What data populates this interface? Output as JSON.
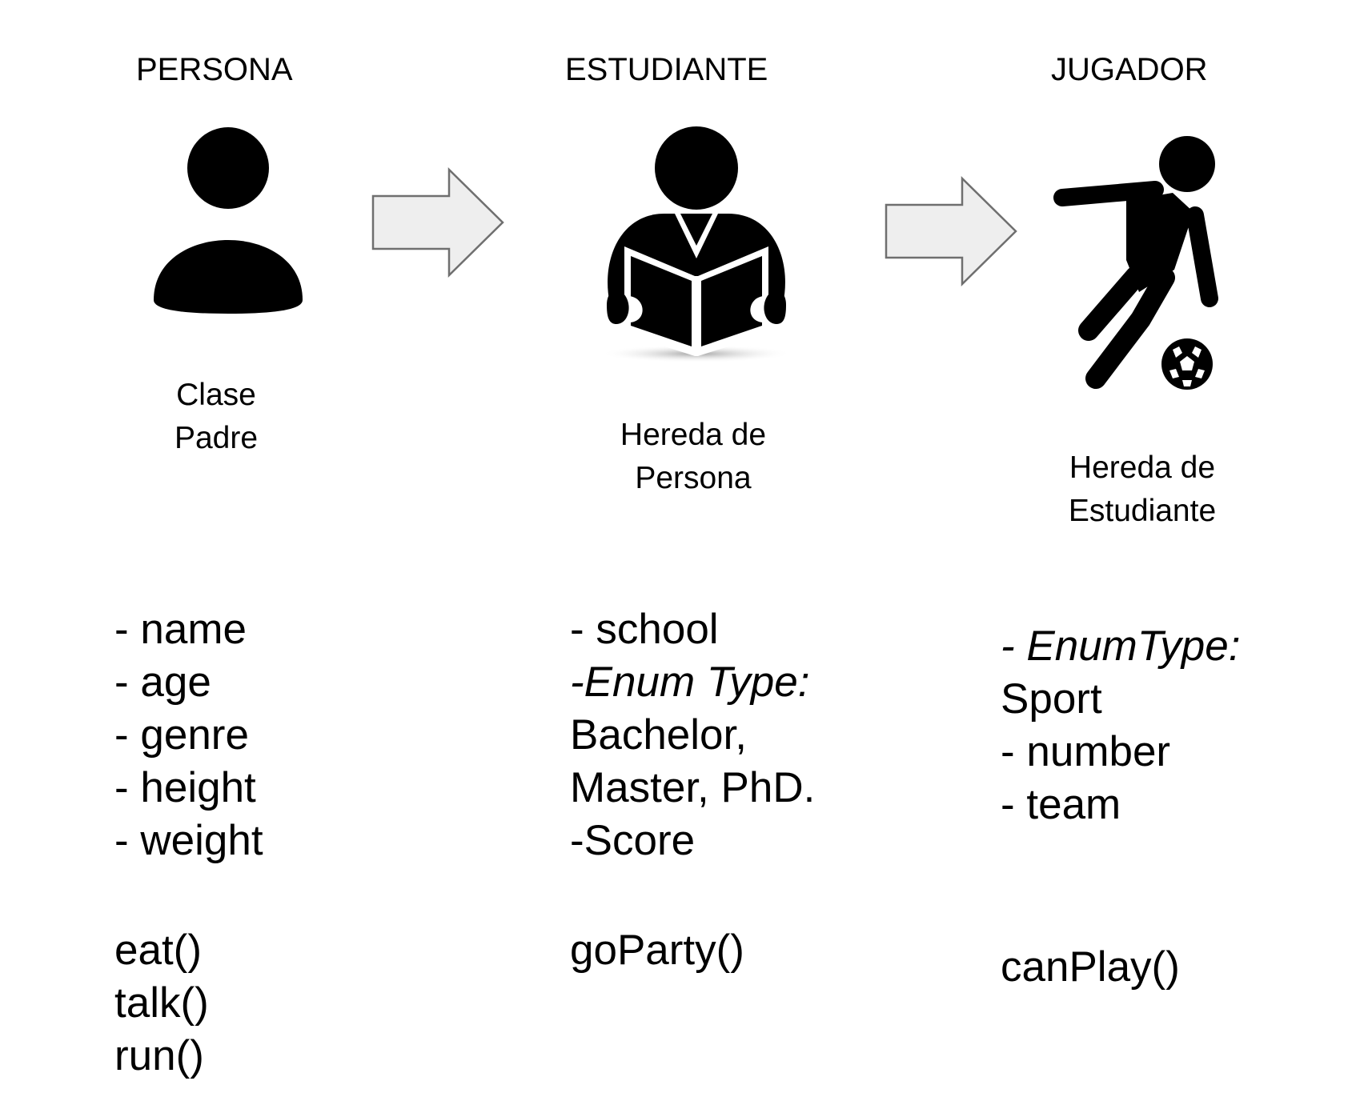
{
  "colors": {
    "ink": "#000000",
    "arrow_fill": "#eeeeee",
    "arrow_stroke": "#6f6f6f",
    "background": "#ffffff"
  },
  "columns": [
    {
      "title": "PERSONA",
      "icon": "person-icon",
      "subtitle_lines": [
        "Clase",
        "Padre"
      ],
      "attributes": [
        "- name",
        "- age",
        "- genre",
        "- height",
        "- weight"
      ],
      "methods": [
        "eat()",
        "talk()",
        "run()"
      ]
    },
    {
      "title": "ESTUDIANTE",
      "icon": "student-reading-icon",
      "subtitle_lines": [
        "Hereda de",
        "Persona"
      ],
      "attributes": [
        "- school",
        "-Enum Type:",
        "Bachelor,",
        "Master, PhD.",
        "-Score"
      ],
      "methods": [
        "goParty()"
      ]
    },
    {
      "title": "JUGADOR",
      "icon": "soccer-player-icon",
      "subtitle_lines": [
        "Hereda de",
        "Estudiante"
      ],
      "attributes": [
        "- EnumType:",
        "Sport",
        "- number",
        "- team"
      ],
      "methods": [
        "canPlay()"
      ]
    }
  ],
  "arrows": [
    {
      "from": "PERSONA",
      "to": "ESTUDIANTE",
      "icon": "right-arrow-icon"
    },
    {
      "from": "ESTUDIANTE",
      "to": "JUGADOR",
      "icon": "right-arrow-icon"
    }
  ]
}
